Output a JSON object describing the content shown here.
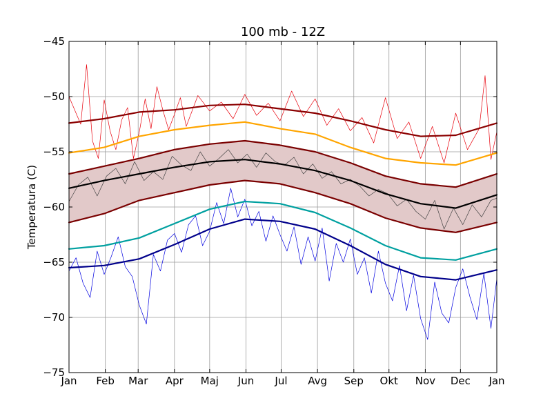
{
  "chart_data": {
    "type": "line",
    "title": "100 mb - 12Z",
    "xlabel": "",
    "ylabel": "Temperatura (C)",
    "xlim": [
      0,
      365
    ],
    "ylim": [
      -75,
      -45
    ],
    "grid": true,
    "x_ticks": [
      {
        "label": "Jan",
        "day": 0
      },
      {
        "label": "Feb",
        "day": 31
      },
      {
        "label": "Mar",
        "day": 59
      },
      {
        "label": "Apr",
        "day": 90
      },
      {
        "label": "Maj",
        "day": 120
      },
      {
        "label": "Jun",
        "day": 151
      },
      {
        "label": "Jul",
        "day": 181
      },
      {
        "label": "Avg",
        "day": 212
      },
      {
        "label": "Sep",
        "day": 243
      },
      {
        "label": "Okt",
        "day": 273
      },
      {
        "label": "Nov",
        "day": 304
      },
      {
        "label": "Dec",
        "day": 334
      },
      {
        "label": "Jan",
        "day": 365
      }
    ],
    "y_ticks": [
      -45,
      -50,
      -55,
      -60,
      -65,
      -70,
      -75
    ],
    "band": {
      "color": "#e2c9c9",
      "upper_series": 3,
      "lower_series": 4
    },
    "series": [
      {
        "color": "#8b0000",
        "width": 2.2,
        "x": [
          0,
          30,
          60,
          90,
          120,
          150,
          180,
          210,
          240,
          270,
          300,
          330,
          365
        ],
        "y": [
          -52.4,
          -52.0,
          -51.4,
          -51.2,
          -50.8,
          -50.7,
          -51.1,
          -51.5,
          -52.2,
          -53.0,
          -53.6,
          -53.5,
          -52.4
        ]
      },
      {
        "color": "#ffa500",
        "width": 2.2,
        "x": [
          0,
          30,
          60,
          90,
          120,
          150,
          180,
          210,
          240,
          270,
          300,
          330,
          365
        ],
        "y": [
          -55.1,
          -54.6,
          -53.6,
          -53.0,
          -52.6,
          -52.3,
          -52.9,
          -53.4,
          -54.6,
          -55.6,
          -56.0,
          -56.2,
          -55.1
        ]
      },
      {
        "color": "#000000",
        "width": 2.2,
        "x": [
          0,
          30,
          60,
          90,
          120,
          150,
          180,
          210,
          240,
          270,
          300,
          330,
          365
        ],
        "y": [
          -58.3,
          -57.6,
          -57.0,
          -56.4,
          -55.9,
          -55.7,
          -56.1,
          -56.7,
          -57.6,
          -58.8,
          -59.7,
          -60.1,
          -58.9
        ]
      },
      {
        "color": "#7a0000",
        "width": 2.2,
        "x": [
          0,
          30,
          60,
          90,
          120,
          150,
          180,
          210,
          240,
          270,
          300,
          330,
          365
        ],
        "y": [
          -57.0,
          -56.3,
          -55.6,
          -54.8,
          -54.3,
          -54.0,
          -54.4,
          -55.0,
          -56.0,
          -57.2,
          -57.9,
          -58.2,
          -57.0
        ]
      },
      {
        "color": "#7a0000",
        "width": 2.2,
        "x": [
          0,
          30,
          60,
          90,
          120,
          150,
          180,
          210,
          240,
          270,
          300,
          330,
          365
        ],
        "y": [
          -61.4,
          -60.6,
          -59.4,
          -58.7,
          -58.0,
          -57.6,
          -57.9,
          -58.7,
          -59.7,
          -61.0,
          -61.9,
          -62.3,
          -61.4
        ]
      },
      {
        "color": "#00a0a0",
        "width": 2.2,
        "x": [
          0,
          30,
          60,
          90,
          120,
          150,
          180,
          210,
          240,
          270,
          300,
          330,
          365
        ],
        "y": [
          -63.8,
          -63.5,
          -62.8,
          -61.5,
          -60.2,
          -59.5,
          -59.7,
          -60.5,
          -61.9,
          -63.5,
          -64.6,
          -64.8,
          -63.8
        ]
      },
      {
        "color": "#00008b",
        "width": 2.2,
        "x": [
          0,
          30,
          60,
          90,
          120,
          150,
          180,
          210,
          240,
          270,
          300,
          330,
          365
        ],
        "y": [
          -65.5,
          -65.3,
          -64.7,
          -63.4,
          -62.0,
          -61.1,
          -61.3,
          -62.0,
          -63.5,
          -65.2,
          -66.3,
          -66.6,
          -65.7
        ]
      },
      {
        "color": "#e8000b",
        "width": 0.7,
        "x": [
          0,
          10,
          15,
          20,
          25,
          30,
          35,
          40,
          45,
          50,
          55,
          60,
          65,
          70,
          75,
          80,
          85,
          90,
          95,
          100,
          110,
          120,
          130,
          140,
          150,
          160,
          170,
          180,
          190,
          200,
          210,
          220,
          230,
          240,
          250,
          260,
          270,
          280,
          290,
          300,
          310,
          320,
          330,
          340,
          350,
          355,
          360,
          365
        ],
        "y": [
          -50.0,
          -52.5,
          -47.1,
          -54.0,
          -55.6,
          -50.3,
          -53.1,
          -54.8,
          -52.1,
          -51.0,
          -55.6,
          -53.2,
          -50.2,
          -52.9,
          -49.1,
          -51.2,
          -53.0,
          -51.6,
          -50.1,
          -52.7,
          -49.9,
          -51.3,
          -50.5,
          -52.0,
          -49.8,
          -51.7,
          -50.6,
          -52.2,
          -49.5,
          -51.8,
          -50.2,
          -52.6,
          -51.1,
          -53.1,
          -51.9,
          -54.2,
          -50.1,
          -53.8,
          -52.3,
          -55.6,
          -52.7,
          -56.0,
          -51.5,
          -54.8,
          -52.9,
          -48.1,
          -55.7,
          -53.2
        ]
      },
      {
        "color": "#444444",
        "width": 0.7,
        "x": [
          0,
          8,
          16,
          24,
          32,
          40,
          48,
          56,
          64,
          72,
          80,
          88,
          96,
          104,
          112,
          120,
          128,
          136,
          144,
          152,
          160,
          168,
          176,
          184,
          192,
          200,
          208,
          216,
          224,
          232,
          240,
          248,
          256,
          264,
          272,
          280,
          288,
          296,
          304,
          312,
          320,
          328,
          336,
          344,
          352,
          360,
          365
        ],
        "y": [
          -59.5,
          -58.0,
          -57.3,
          -59.0,
          -57.2,
          -56.5,
          -57.9,
          -55.9,
          -57.6,
          -56.8,
          -57.5,
          -55.4,
          -56.2,
          -56.7,
          -55.0,
          -56.3,
          -55.6,
          -54.8,
          -56.0,
          -55.2,
          -56.4,
          -55.1,
          -55.9,
          -56.2,
          -55.5,
          -57.0,
          -56.1,
          -57.4,
          -56.8,
          -57.9,
          -57.5,
          -58.1,
          -59.0,
          -58.4,
          -58.8,
          -59.9,
          -59.3,
          -60.4,
          -61.1,
          -59.4,
          -62.0,
          -60.1,
          -61.6,
          -59.8,
          -60.9,
          -59.4,
          -59.2
        ]
      },
      {
        "color": "#0000e0",
        "width": 0.7,
        "x": [
          0,
          6,
          12,
          18,
          24,
          30,
          36,
          42,
          48,
          54,
          60,
          66,
          72,
          78,
          84,
          90,
          96,
          102,
          108,
          114,
          120,
          126,
          132,
          138,
          144,
          150,
          156,
          162,
          168,
          174,
          180,
          186,
          192,
          198,
          204,
          210,
          216,
          222,
          228,
          234,
          240,
          246,
          252,
          258,
          264,
          270,
          276,
          282,
          288,
          294,
          300,
          306,
          312,
          318,
          324,
          330,
          336,
          342,
          348,
          354,
          360,
          365
        ],
        "y": [
          -65.8,
          -64.6,
          -66.9,
          -68.2,
          -64.0,
          -66.1,
          -64.5,
          -62.7,
          -65.4,
          -66.3,
          -68.9,
          -70.6,
          -64.3,
          -65.8,
          -63.0,
          -62.4,
          -64.1,
          -61.6,
          -60.8,
          -63.5,
          -62.2,
          -59.6,
          -61.5,
          -58.3,
          -60.9,
          -59.3,
          -61.7,
          -60.4,
          -63.1,
          -60.8,
          -62.5,
          -64.0,
          -61.8,
          -65.2,
          -62.7,
          -64.9,
          -61.9,
          -66.7,
          -63.3,
          -65.0,
          -62.9,
          -66.1,
          -64.6,
          -67.8,
          -64.0,
          -66.9,
          -68.5,
          -65.3,
          -69.4,
          -66.2,
          -70.1,
          -72.0,
          -66.8,
          -69.6,
          -70.5,
          -67.3,
          -65.6,
          -68.1,
          -70.2,
          -66.0,
          -71.0,
          -66.5
        ]
      }
    ]
  }
}
